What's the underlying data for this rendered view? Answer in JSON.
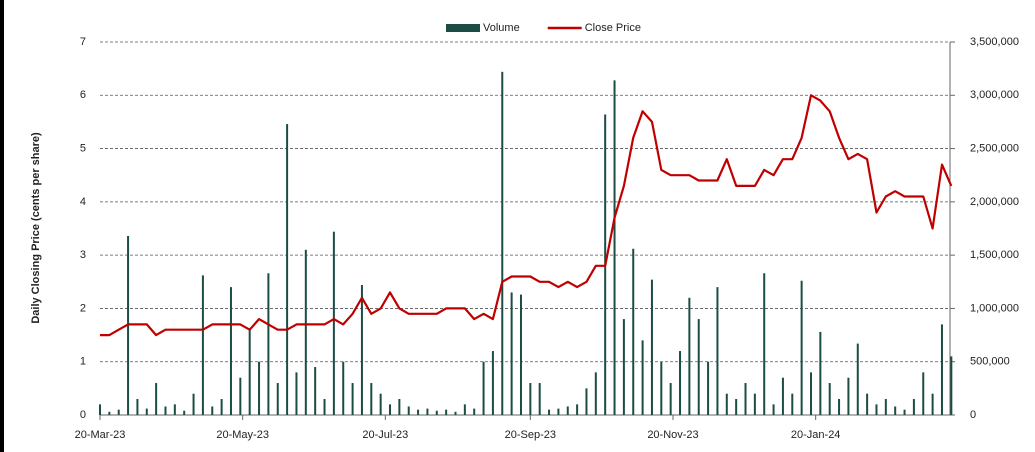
{
  "chart_data": {
    "type": "bar_line",
    "y_label": "Daily Closing Price (cents per share)",
    "x": [
      "2023-03-20",
      "2023-03-24",
      "2023-03-28",
      "2023-04-01",
      "2023-04-05",
      "2023-04-09",
      "2023-04-13",
      "2023-04-17",
      "2023-04-21",
      "2023-04-25",
      "2023-04-29",
      "2023-05-03",
      "2023-05-07",
      "2023-05-11",
      "2023-05-15",
      "2023-05-19",
      "2023-05-23",
      "2023-05-27",
      "2023-05-31",
      "2023-06-04",
      "2023-06-08",
      "2023-06-12",
      "2023-06-16",
      "2023-06-20",
      "2023-06-24",
      "2023-06-28",
      "2023-07-02",
      "2023-07-06",
      "2023-07-10",
      "2023-07-14",
      "2023-07-18",
      "2023-07-22",
      "2023-07-26",
      "2023-07-30",
      "2023-08-03",
      "2023-08-07",
      "2023-08-11",
      "2023-08-15",
      "2023-08-19",
      "2023-08-23",
      "2023-08-27",
      "2023-08-31",
      "2023-09-04",
      "2023-09-08",
      "2023-09-12",
      "2023-09-16",
      "2023-09-20",
      "2023-09-24",
      "2023-09-28",
      "2023-10-02",
      "2023-10-06",
      "2023-10-10",
      "2023-10-14",
      "2023-10-18",
      "2023-10-22",
      "2023-10-26",
      "2023-10-30",
      "2023-11-03",
      "2023-11-07",
      "2023-11-11",
      "2023-11-15",
      "2023-11-19",
      "2023-11-23",
      "2023-11-27",
      "2023-12-01",
      "2023-12-05",
      "2023-12-09",
      "2023-12-13",
      "2023-12-17",
      "2023-12-21",
      "2023-12-25",
      "2023-12-29",
      "2024-01-02",
      "2024-01-06",
      "2024-01-10",
      "2024-01-14",
      "2024-01-18",
      "2024-01-22",
      "2024-01-26",
      "2024-01-30",
      "2024-02-03",
      "2024-02-07",
      "2024-02-11",
      "2024-02-15",
      "2024-02-19",
      "2024-02-23",
      "2024-02-27",
      "2024-03-02",
      "2024-03-06",
      "2024-03-10",
      "2024-03-14",
      "2024-03-18"
    ],
    "series": [
      {
        "name": "Volume",
        "color": "#1b4d45",
        "kind": "bar",
        "axis": "y2",
        "values": [
          100000,
          30000,
          50000,
          1680000,
          150000,
          60000,
          300000,
          80000,
          100000,
          40000,
          200000,
          1310000,
          80000,
          150000,
          1200000,
          350000,
          800000,
          500000,
          1330000,
          300000,
          2730000,
          400000,
          1550000,
          450000,
          150000,
          1720000,
          500000,
          300000,
          1220000,
          300000,
          200000,
          100000,
          150000,
          80000,
          50000,
          60000,
          40000,
          50000,
          30000,
          100000,
          60000,
          500000,
          600000,
          3220000,
          1150000,
          1130000,
          300000,
          300000,
          50000,
          60000,
          80000,
          100000,
          250000,
          400000,
          2820000,
          3140000,
          900000,
          1560000,
          700000,
          1270000,
          500000,
          300000,
          600000,
          1100000,
          900000,
          500000,
          1200000,
          200000,
          150000,
          300000,
          200000,
          1330000,
          100000,
          350000,
          200000,
          1260000,
          400000,
          780000,
          300000,
          150000,
          350000,
          670000,
          200000,
          100000,
          150000,
          80000,
          50000,
          150000,
          400000,
          200000,
          850000,
          550000
        ]
      },
      {
        "name": "Close Price",
        "color": "#c00000",
        "kind": "line",
        "values": [
          1.5,
          1.5,
          1.6,
          1.7,
          1.7,
          1.7,
          1.5,
          1.6,
          1.6,
          1.6,
          1.6,
          1.6,
          1.7,
          1.7,
          1.7,
          1.7,
          1.6,
          1.8,
          1.7,
          1.6,
          1.6,
          1.7,
          1.7,
          1.7,
          1.7,
          1.8,
          1.7,
          1.9,
          2.2,
          1.9,
          2.0,
          2.3,
          2.0,
          1.9,
          1.9,
          1.9,
          1.9,
          2.0,
          2.0,
          2.0,
          1.8,
          1.9,
          1.8,
          2.5,
          2.6,
          2.6,
          2.6,
          2.5,
          2.5,
          2.4,
          2.5,
          2.4,
          2.5,
          2.8,
          2.8,
          3.7,
          4.3,
          5.2,
          5.7,
          5.5,
          4.6,
          4.5,
          4.5,
          4.5,
          4.4,
          4.4,
          4.4,
          4.8,
          4.3,
          4.3,
          4.3,
          4.6,
          4.5,
          4.8,
          4.8,
          5.2,
          6.0,
          5.9,
          5.7,
          5.2,
          4.8,
          4.9,
          4.8,
          3.8,
          4.1,
          4.2,
          4.1,
          4.1,
          4.1,
          3.5,
          4.7,
          4.3
        ]
      }
    ],
    "xlim": [
      "2023-03-20",
      "2024-03-20"
    ],
    "xticks": [
      {
        "value": "2023-03-20",
        "label": "20-Mar-23"
      },
      {
        "value": "2023-05-20",
        "label": "20-May-23"
      },
      {
        "value": "2023-07-20",
        "label": "20-Jul-23"
      },
      {
        "value": "2023-09-20",
        "label": "20-Sep-23"
      },
      {
        "value": "2023-11-20",
        "label": "20-Nov-23"
      },
      {
        "value": "2024-01-20",
        "label": "20-Jan-24"
      }
    ],
    "ylim": [
      0,
      7
    ],
    "yticks": [
      0,
      1,
      2,
      3,
      4,
      5,
      6,
      7
    ],
    "y2lim": [
      0,
      3500000
    ],
    "y2ticks": [
      0,
      {
        "value": 500000,
        "label": "500,000"
      },
      {
        "value": 1000000,
        "label": "1,000,000"
      },
      {
        "value": 1500000,
        "label": "1,500,000"
      },
      {
        "value": 2000000,
        "label": "2,000,000"
      },
      {
        "value": 2500000,
        "label": "2,500,000"
      },
      {
        "value": 3000000,
        "label": "3,000,000"
      },
      {
        "value": 3500000,
        "label": "3,500,000"
      }
    ],
    "grid": true,
    "legend": "top"
  }
}
